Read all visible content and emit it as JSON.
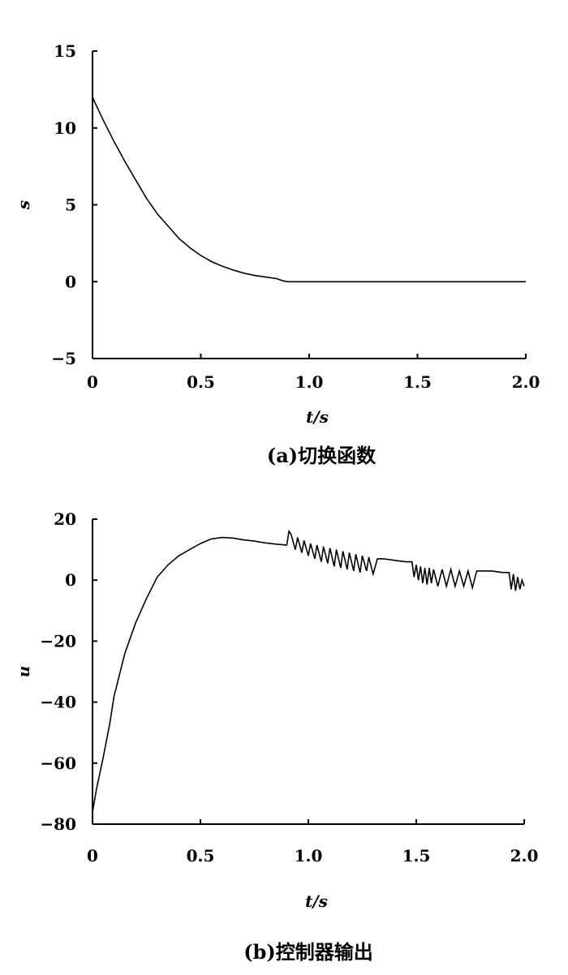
{
  "chart_data": [
    {
      "type": "line",
      "caption": "(a)切换函数",
      "xlabel": "t/s",
      "ylabel": "s",
      "xlim": [
        0,
        2.0
      ],
      "ylim": [
        -5,
        15
      ],
      "xticks": [
        "0",
        "0.5",
        "1.0",
        "1.5",
        "2.0"
      ],
      "yticks": [
        "15",
        "10",
        "5",
        "0",
        "−5"
      ],
      "grid": false,
      "series": [
        {
          "x": [
            0.0,
            0.05,
            0.1,
            0.15,
            0.2,
            0.25,
            0.3,
            0.35,
            0.4,
            0.45,
            0.5,
            0.55,
            0.6,
            0.65,
            0.7,
            0.75,
            0.8,
            0.85,
            0.88,
            0.9,
            1.0,
            1.2,
            1.4,
            1.6,
            1.8,
            2.0
          ],
          "y": [
            12.0,
            10.5,
            9.1,
            7.8,
            6.6,
            5.4,
            4.4,
            3.6,
            2.8,
            2.2,
            1.7,
            1.3,
            1.0,
            0.75,
            0.55,
            0.4,
            0.3,
            0.2,
            0.05,
            0.0,
            0.0,
            0.0,
            0.0,
            0.0,
            0.0,
            0.0
          ]
        }
      ]
    },
    {
      "type": "line",
      "caption": "(b)控制器输出",
      "xlabel": "t/s",
      "ylabel": "u",
      "xlim": [
        0,
        2.0
      ],
      "ylim": [
        -80,
        20
      ],
      "xticks": [
        "0",
        "0.5",
        "1.0",
        "1.5",
        "2.0"
      ],
      "yticks": [
        "20",
        "0",
        "−20",
        "−40",
        "−60",
        "−80"
      ],
      "grid": false,
      "series": [
        {
          "x": [
            0.0,
            0.02,
            0.05,
            0.08,
            0.1,
            0.15,
            0.2,
            0.25,
            0.3,
            0.35,
            0.4,
            0.45,
            0.5,
            0.55,
            0.6,
            0.65,
            0.7,
            0.75,
            0.8,
            0.85,
            0.9,
            0.91,
            0.92,
            0.94,
            0.95,
            0.97,
            0.98,
            1.0,
            1.01,
            1.03,
            1.04,
            1.06,
            1.07,
            1.09,
            1.1,
            1.12,
            1.13,
            1.15,
            1.16,
            1.18,
            1.19,
            1.21,
            1.22,
            1.24,
            1.25,
            1.27,
            1.28,
            1.3,
            1.32,
            1.35,
            1.4,
            1.45,
            1.48,
            1.49,
            1.5,
            1.51,
            1.52,
            1.53,
            1.54,
            1.55,
            1.56,
            1.57,
            1.58,
            1.6,
            1.62,
            1.64,
            1.66,
            1.68,
            1.7,
            1.72,
            1.74,
            1.76,
            1.78,
            1.8,
            1.85,
            1.9,
            1.93,
            1.94,
            1.95,
            1.96,
            1.97,
            1.98,
            1.99,
            2.0
          ],
          "y": [
            -76,
            -68,
            -58,
            -47,
            -38,
            -24,
            -14,
            -6,
            1,
            5,
            8,
            10,
            12,
            13.5,
            14,
            13.8,
            13.2,
            12.8,
            12.2,
            11.8,
            11.5,
            16,
            15,
            10,
            14,
            9,
            13,
            8,
            12,
            7,
            11.5,
            6,
            11,
            5.5,
            10.5,
            4.5,
            10,
            4,
            9.5,
            3.5,
            9,
            3,
            8.5,
            2.5,
            8,
            3,
            7.5,
            2,
            7,
            7,
            6.5,
            6,
            6,
            1,
            5,
            0,
            4.5,
            -1,
            4,
            -1.5,
            4,
            -1,
            3.5,
            -2,
            3.5,
            -2,
            3.5,
            -2,
            3,
            -2,
            3,
            -2.5,
            3,
            3,
            3,
            2.5,
            2.5,
            -3,
            2,
            -3.5,
            1,
            -3,
            0,
            -2
          ]
        }
      ]
    }
  ]
}
